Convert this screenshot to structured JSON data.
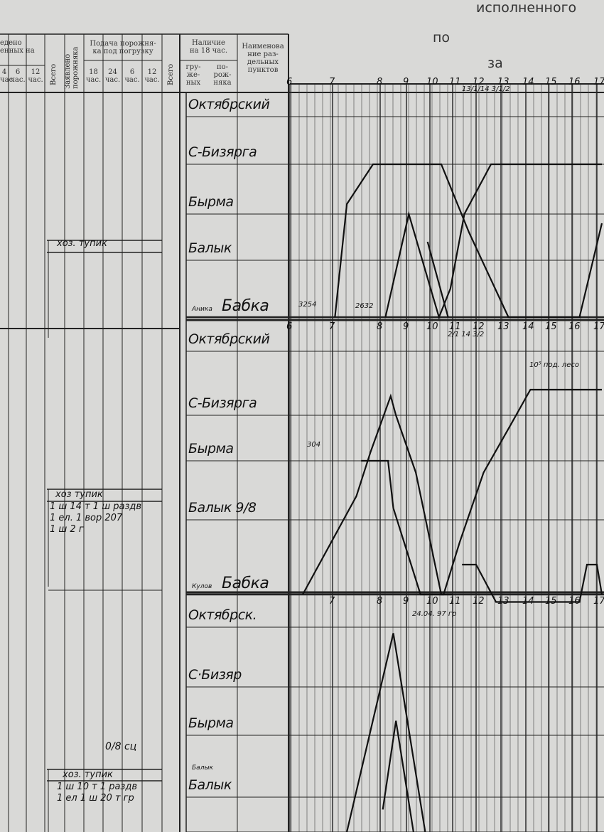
{
  "header": {
    "title_fragment": "исполненного",
    "po_label": "по",
    "za_label": "за"
  },
  "table_header": {
    "col_group_1": "едено\nенных на",
    "col_group_1_sub": [
      "4\nчас",
      "6\nчас.",
      "12\nчас."
    ],
    "vsego_1": "Всего",
    "zayavleno": "Заявлено\nпорожняка",
    "podacha": "Подача порожня-\nка под погрузку",
    "podacha_sub": [
      "18\nчас.",
      "24\nчас.",
      "6\nчас.",
      "12\nчас."
    ],
    "vsego_2": "Всего",
    "nalichie": "Наличие\nна 18 час.",
    "nalichie_sub": [
      "гру-\nже-\nных",
      "по-\nрож-\nняка"
    ],
    "naimenovanie": "Наимено­ва\nние раз-\nдельных\nпунктов"
  },
  "hour_labels": [
    "6",
    "7",
    "8",
    "9",
    "10",
    "11",
    "12",
    "13",
    "14",
    "15",
    "16",
    "17"
  ],
  "panels": [
    {
      "stations": [
        "Октябрский",
        "С-Бизярга",
        "Бырма",
        "Балык",
        "Бабка"
      ],
      "small_label": "Аника",
      "annotations": [
        "3254",
        "2632",
        "13/1/14 3/1/2"
      ],
      "trains": [
        [
          [
            7.05,
            4
          ],
          [
            7.3,
            1.8
          ],
          [
            7.85,
            1
          ],
          [
            10.5,
            1
          ],
          [
            11.7,
            2.4
          ],
          [
            13.3,
            4
          ],
          [
            16.3,
            4
          ],
          [
            17.2,
            2.2
          ]
        ],
        [
          [
            8.2,
            4
          ],
          [
            9.1,
            2
          ],
          [
            10.4,
            4
          ],
          [
            10.9,
            3.5
          ],
          [
            11.5,
            2
          ],
          [
            12.6,
            1
          ],
          [
            17.2,
            1
          ]
        ],
        [
          [
            9.9,
            2.6
          ],
          [
            10.8,
            4
          ]
        ]
      ]
    },
    {
      "stations": [
        "Октябрский",
        "С-Бизярга",
        "Бырма",
        "Балык 9/8",
        "Бабка"
      ],
      "small_label": "Кулов",
      "annotations": [
        "2/1 14 3/2",
        "10⁵ под. лесо",
        "304"
      ],
      "trains": [
        [
          [
            6.3,
            4
          ],
          [
            7.5,
            2.6
          ],
          [
            7.8,
            1.8
          ],
          [
            8.4,
            0.7
          ],
          [
            8.6,
            1
          ],
          [
            9.4,
            2.2
          ],
          [
            10.5,
            4
          ],
          [
            11,
            4
          ]
        ],
        [
          [
            7.6,
            2
          ],
          [
            8.3,
            2
          ],
          [
            8.5,
            2.8
          ],
          [
            9.6,
            4
          ],
          [
            10.6,
            4
          ],
          [
            11.3,
            3.3
          ],
          [
            12.3,
            2.2
          ],
          [
            13.4,
            1.2
          ],
          [
            14.2,
            0.6
          ],
          [
            17.2,
            0.6
          ]
        ],
        [
          [
            11.4,
            3.6
          ],
          [
            12,
            3.6
          ],
          [
            12.8,
            4.1
          ],
          [
            14,
            4.1
          ],
          [
            16.3,
            4.1
          ],
          [
            16.6,
            3.6
          ],
          [
            17,
            3.6
          ],
          [
            17.2,
            4
          ]
        ]
      ]
    },
    {
      "stations": [
        "Октябрск.",
        "С·Бизяр",
        "Бырма",
        "Балык"
      ],
      "small_label": "Балык",
      "annotations": [
        "24.04. 97 гр"
      ],
      "trains": [
        [
          [
            7.3,
            4.2
          ],
          [
            8.5,
            0.1
          ],
          [
            9.8,
            4.2
          ]
        ],
        [
          [
            8.1,
            3.2
          ],
          [
            8.6,
            1.7
          ],
          [
            9.3,
            4.2
          ]
        ]
      ]
    }
  ],
  "notes": [
    {
      "title": "хоз. тупик",
      "lines": []
    },
    {
      "title": "хоз тупик",
      "lines": [
        "1 ш 14 т 1 ш раздв",
        "1 ел. 1 вор 207",
        "1 ш 2 г"
      ]
    },
    {
      "title": "хоз. тупик",
      "lines": [
        "1 ш 10 т 1 раздв",
        "1 ел 1 ш 20 т гр"
      ],
      "above": "0/8 сц"
    }
  ],
  "colors": {
    "paper": "#d9d9d7",
    "ink": "#111111",
    "print": "#333333"
  }
}
